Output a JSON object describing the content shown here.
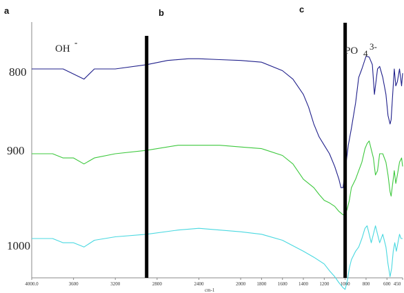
{
  "panel_letters": [
    "a",
    "b",
    "c"
  ],
  "chart_data": {
    "type": "line",
    "title": "",
    "xlabel": "cm-1",
    "ylabel": "",
    "xlim": [
      4000,
      450
    ],
    "x_ticks": [
      "4000.0",
      "3600",
      "3200",
      "2800",
      "2400",
      "2000",
      "1800",
      "1600",
      "1400",
      "1200",
      "1000",
      "800",
      "600",
      "450"
    ],
    "band_labels": [
      {
        "text": "OH",
        "sup": "-"
      },
      {
        "text": "PO",
        "sub": "4",
        "sup": "3-"
      }
    ],
    "reference_lines_x": [
      2900,
      1000
    ],
    "offset_labels": [
      "800",
      "900",
      "1000"
    ],
    "series": [
      {
        "name": "800",
        "color": "#1e1e8a",
        "x": [
          4000,
          3700,
          3500,
          3400,
          3200,
          2900,
          2700,
          2500,
          2400,
          2200,
          2000,
          1800,
          1600,
          1500,
          1400,
          1350,
          1300,
          1250,
          1200,
          1150,
          1100,
          1060,
          1040,
          1020,
          1000,
          970,
          940,
          900,
          870,
          840,
          800,
          770,
          740,
          720,
          700,
          690,
          670,
          640,
          610,
          590,
          570,
          560,
          545,
          530,
          515,
          500,
          480,
          460,
          450
        ],
        "y": [
          0.8,
          0.8,
          0.812,
          0.8,
          0.8,
          0.795,
          0.79,
          0.788,
          0.788,
          0.789,
          0.79,
          0.792,
          0.802,
          0.812,
          0.83,
          0.845,
          0.865,
          0.88,
          0.89,
          0.9,
          0.915,
          0.93,
          0.94,
          0.94,
          0.92,
          0.89,
          0.87,
          0.84,
          0.81,
          0.8,
          0.785,
          0.786,
          0.795,
          0.83,
          0.81,
          0.8,
          0.797,
          0.81,
          0.83,
          0.855,
          0.865,
          0.86,
          0.83,
          0.8,
          0.82,
          0.815,
          0.8,
          0.82,
          0.805
        ]
      },
      {
        "name": "900",
        "color": "#3cc83c",
        "x": [
          4000,
          3800,
          3700,
          3600,
          3500,
          3400,
          3200,
          2900,
          2600,
          2400,
          2200,
          2000,
          1800,
          1600,
          1500,
          1400,
          1300,
          1250,
          1200,
          1150,
          1100,
          1060,
          1020,
          1000,
          980,
          960,
          940,
          900,
          870,
          840,
          810,
          790,
          770,
          750,
          730,
          710,
          690,
          670,
          640,
          610,
          590,
          570,
          560,
          545,
          530,
          515,
          500,
          480,
          460,
          450
        ],
        "y": [
          0.9,
          0.9,
          0.905,
          0.905,
          0.912,
          0.905,
          0.9,
          0.896,
          0.89,
          0.89,
          0.89,
          0.892,
          0.894,
          0.902,
          0.912,
          0.93,
          0.94,
          0.948,
          0.955,
          0.958,
          0.962,
          0.968,
          0.972,
          0.972,
          0.965,
          0.955,
          0.94,
          0.93,
          0.92,
          0.91,
          0.894,
          0.888,
          0.885,
          0.895,
          0.905,
          0.925,
          0.92,
          0.9,
          0.9,
          0.91,
          0.925,
          0.945,
          0.95,
          0.935,
          0.92,
          0.935,
          0.925,
          0.91,
          0.905,
          0.915
        ]
      },
      {
        "name": "1000",
        "color": "#48d8e0",
        "x": [
          4000,
          3800,
          3700,
          3600,
          3500,
          3400,
          3200,
          2900,
          2600,
          2400,
          2200,
          2000,
          1800,
          1600,
          1400,
          1300,
          1200,
          1150,
          1100,
          1060,
          1020,
          1000,
          980,
          960,
          940,
          900,
          870,
          840,
          810,
          790,
          770,
          750,
          730,
          710,
          690,
          670,
          640,
          610,
          590,
          570,
          555,
          540,
          525,
          510,
          495,
          480,
          465,
          450
        ],
        "y": [
          1.0,
          1.0,
          1.005,
          1.005,
          1.01,
          1.002,
          0.998,
          0.995,
          0.99,
          0.988,
          0.99,
          0.992,
          0.995,
          1.002,
          1.015,
          1.022,
          1.03,
          1.038,
          1.045,
          1.052,
          1.058,
          1.06,
          1.05,
          1.035,
          1.025,
          1.015,
          1.01,
          1.0,
          0.988,
          0.985,
          0.995,
          1.005,
          0.995,
          0.985,
          0.995,
          1.005,
          0.995,
          1.01,
          1.03,
          1.045,
          1.035,
          1.015,
          1.005,
          1.015,
          1.005,
          0.995,
          1.0,
          1.0
        ]
      }
    ]
  }
}
